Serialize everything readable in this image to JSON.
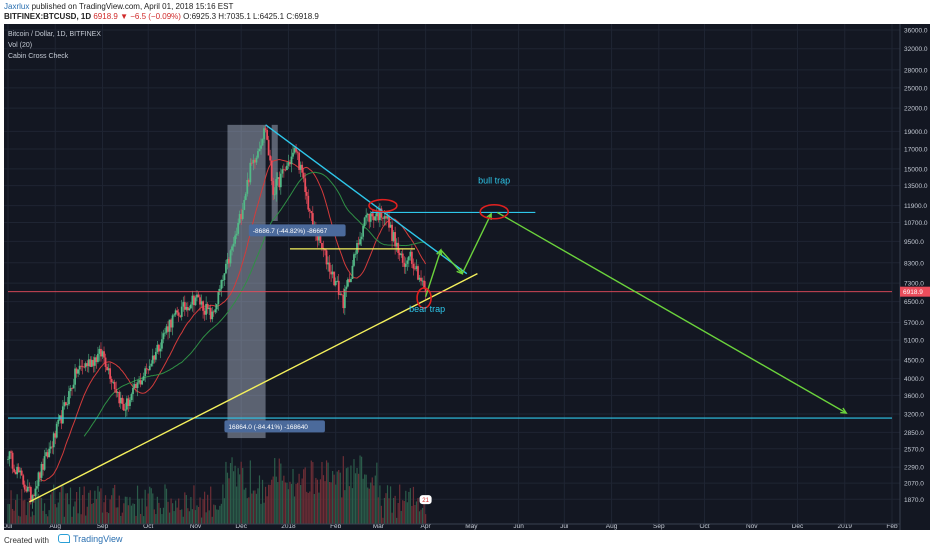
{
  "header": {
    "author": "Jaxrlux",
    "published": "published on TradingView.com, April 01, 2018 15:16 EST",
    "symbol": "BITFINEX:BTCUSD, 1D",
    "last": "6918.9",
    "change": "−6.5 (−0.09%)",
    "ohlc": "O:6925.3 H:7035.1 L:6425.1 C:6918.9"
  },
  "footer": {
    "created_with": "Created with",
    "brand": "TradingView"
  },
  "chart_data": {
    "type": "candlestick",
    "instrument": "Bitcoin / Dollar, 1D, BITFINEX",
    "indicators": [
      "Vol (20)",
      "Cabin Cross Check"
    ],
    "y_scale": "log",
    "y_range": [
      1600,
      36000
    ],
    "y_ticks": [
      36000,
      32000,
      28000,
      25000,
      22000,
      19000,
      17000,
      15000,
      13500,
      11900,
      10700,
      9500,
      8300,
      7300,
      6500,
      5700,
      5100,
      4500,
      4000,
      3600,
      3200,
      2850,
      2570,
      2290,
      2070,
      1870
    ],
    "x_ticks": [
      "Jul",
      "Aug",
      "Sep",
      "Oct",
      "Nov",
      "Dec",
      "2018",
      "Feb",
      "Mar",
      "Apr",
      "May",
      "Jun",
      "Jul",
      "Aug",
      "Sep",
      "Oct",
      "Nov",
      "Dec",
      "2019",
      "Feb"
    ],
    "x_tick_dates": [
      "2017-07-01",
      "2017-08-01",
      "2017-09-01",
      "2017-10-01",
      "2017-11-01",
      "2017-12-01",
      "2018-01-01",
      "2018-02-01",
      "2018-03-01",
      "2018-04-01",
      "2018-05-01",
      "2018-06-01",
      "2018-07-01",
      "2018-08-01",
      "2018-09-01",
      "2018-10-01",
      "2018-11-01",
      "2018-12-01",
      "2019-01-01",
      "2019-02-01"
    ],
    "price_path": [
      [
        "2017-07-01",
        2500
      ],
      [
        "2017-07-16",
        1900
      ],
      [
        "2017-08-01",
        2800
      ],
      [
        "2017-08-15",
        4200
      ],
      [
        "2017-09-01",
        4700
      ],
      [
        "2017-09-15",
        3300
      ],
      [
        "2017-10-01",
        4300
      ],
      [
        "2017-10-15",
        5700
      ],
      [
        "2017-11-01",
        6700
      ],
      [
        "2017-11-12",
        5900
      ],
      [
        "2017-11-28",
        10000
      ],
      [
        "2017-12-07",
        15000
      ],
      [
        "2017-12-17",
        19500
      ],
      [
        "2017-12-22",
        13000
      ],
      [
        "2018-01-06",
        17000
      ],
      [
        "2018-01-17",
        10500
      ],
      [
        "2018-02-06",
        6500
      ],
      [
        "2018-02-20",
        11000
      ],
      [
        "2018-03-05",
        11400
      ],
      [
        "2018-03-18",
        8000
      ],
      [
        "2018-03-21",
        9000
      ],
      [
        "2018-04-01",
        6918.9
      ]
    ],
    "current_price": "6918.9",
    "current_price_value": 6918.9,
    "volume_marker": "21",
    "annotations": {
      "drop_label_1": "-8686.7 (-44.82%) -86667",
      "drop_label_2": "16864.0 (-84.41%) -168640",
      "bull_trap": "bull trap",
      "bear_trap": "bear trap"
    },
    "levels": {
      "resistance": 11400,
      "support": 3120,
      "mid": 9060
    },
    "grid": true,
    "colors": {
      "background": "#131722",
      "up": "#53b987",
      "down": "#eb4d5c",
      "trendline_down": "#2ec7ea",
      "trendline_up": "#f4f05c",
      "arrows": "#6bd33c",
      "circles": "#e0201f",
      "level_line": "#2ec7ea",
      "ma_red": "#d23b3b",
      "ma_green": "#2f8f45",
      "highlight": "#b3bed2",
      "label_text": "#2ec7ea"
    }
  }
}
